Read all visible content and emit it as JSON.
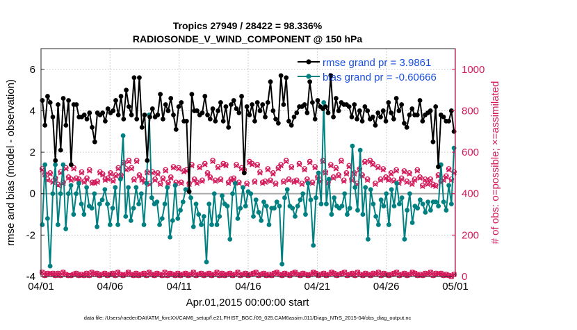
{
  "chart_data": {
    "type": "line",
    "title": "Tropics 27949 / 28422 = 98.336%",
    "subtitle": "RADIOSONDE_V_WIND_COMPONENT @ 150 hPa",
    "xlabel": "Apr.01,2015 00:00:00 start",
    "ylabel_left": "rmse and bias (model - observation)",
    "ylabel_right": "# of obs: o=possible; ×=assimilated",
    "footer": "data file: /Users/raeder/DAI/ATM_forcXX/CAM6_setup/f.e21.FHIST_BGC.f09_025.CAM6assim.011/Diags_NTrS_2015-04/obs_diag_output.nc",
    "xlim": [
      0,
      30
    ],
    "ylim_left": [
      -4,
      7
    ],
    "ylim_right": [
      0,
      1100
    ],
    "x_tick_values": [
      0,
      5,
      10,
      15,
      20,
      25,
      30
    ],
    "x_tick_labels": [
      "04/01",
      "04/06",
      "04/11",
      "04/16",
      "04/21",
      "04/26",
      "05/01"
    ],
    "y_left_ticks": [
      "-4",
      "-2",
      "0",
      "2",
      "4",
      "6"
    ],
    "y_right_ticks": [
      "0",
      "200",
      "400",
      "600",
      "800",
      "1000"
    ],
    "legend": {
      "position": "top-right",
      "entries": [
        "rmse grand pr = 3.9861",
        "bias grand pr = -0.60666"
      ]
    },
    "colors": {
      "rmse": "#000000",
      "bias": "#008080",
      "obs": "#d3195a",
      "legend_text": "#1a4fe0",
      "zero_line": "#aaaaaa",
      "grid": "#bfbfbf"
    },
    "series": [
      {
        "name": "rmse",
        "axis": "left",
        "values": [
          4.5,
          3.3,
          4.7,
          4.4,
          3.7,
          1.6,
          4.3,
          2.1,
          4.6,
          3.3,
          4.5,
          1.4,
          4.3,
          4.3,
          3.7,
          3.7,
          3.8,
          3.6,
          3.9,
          3.2,
          2.5,
          3.9,
          3.8,
          3.9,
          3.5,
          4.1,
          3.9,
          4.0,
          4.5,
          3.8,
          4.7,
          3.6,
          5.0,
          4.2,
          3.8,
          5.6,
          3.6,
          5.6,
          3.2,
          3.8,
          1.6,
          3.7,
          4.1,
          3.7,
          3.8,
          4.8,
          3.6,
          4.3,
          4.0,
          4.6,
          3.8,
          3.1,
          4.2,
          4.4,
          3.5,
          3.5,
          0.1,
          4.8,
          4.0,
          4.0,
          3.8,
          3.9,
          4.7,
          3.8,
          3.6,
          4.1,
          3.5,
          4.0,
          4.4,
          3.5,
          4.2,
          3.2,
          4.3,
          4.5,
          4.1,
          3.9,
          4.7,
          1.0,
          4.2,
          3.8,
          4.3,
          3.5,
          4.4,
          4.0,
          4.3,
          3.7,
          4.4,
          5.4,
          4.0,
          3.6,
          3.4,
          5.7,
          4.3,
          5.6,
          3.5,
          3.3,
          3.7,
          3.9,
          4.2,
          4.2,
          4.3,
          3.9,
          5.4,
          4.4,
          3.6,
          4.5,
          4.2,
          4.1,
          4.2,
          3.9,
          5.7,
          3.7,
          4.6,
          4.0,
          4.4,
          4.3,
          4.3,
          4.2,
          3.7,
          4.3,
          3.6,
          4.0,
          3.5,
          4.2,
          4.0,
          3.6,
          3.7,
          3.3,
          3.9,
          3.7,
          4.0,
          3.5,
          4.4,
          3.9,
          3.6,
          4.6,
          4.0,
          4.3,
          3.4,
          3.2,
          3.8,
          4.1,
          3.8,
          3.8,
          4.5,
          3.5,
          3.8,
          3.9,
          4.0,
          2.5,
          4.2,
          1.3,
          3.8,
          3.7,
          3.5,
          3.5,
          4.0,
          3.0
        ]
      },
      {
        "name": "bias",
        "axis": "left",
        "values": [
          -1.5,
          1.4,
          -1.2,
          -3.5,
          0.0,
          1.4,
          -1.5,
          0.0,
          1.4,
          -1.7,
          0.0,
          0.4,
          -1.0,
          0.0,
          0.5,
          -0.5,
          -1.0,
          0.3,
          -0.6,
          -0.7,
          0.0,
          -1.6,
          -0.5,
          -0.3,
          0.2,
          -0.5,
          -1.5,
          -0.7,
          0.3,
          -1.5,
          0.7,
          2.8,
          -1.1,
          0.3,
          -1.3,
          -0.7,
          0.3,
          -0.5,
          0.0,
          -1.5,
          0.5,
          3.8,
          -0.2,
          -0.5,
          -0.4,
          -1.5,
          -1.2,
          -0.5,
          0.3,
          -2.1,
          -1.3,
          0.4,
          -1.2,
          -0.8,
          -0.4,
          0.2,
          0.2,
          -0.2,
          -1.6,
          -0.5,
          -1.0,
          -1.5,
          -1.1,
          -3.3,
          -0.5,
          -1.5,
          0.0,
          -1.5,
          -1.1,
          -0.1,
          -0.5,
          -0.6,
          -2.2,
          0.0,
          0.5,
          -1.2,
          -0.7,
          0.3,
          -0.6,
          0.1,
          0.0,
          -1.1,
          -0.3,
          -0.9,
          -1.3,
          -0.4,
          -0.6,
          -1.5,
          -0.7,
          -0.7,
          -0.4,
          -0.6,
          -3.4,
          -0.2,
          0.2,
          -0.6,
          -0.7,
          -1.1,
          -0.6,
          -0.3,
          0.0,
          -1.0,
          0.5,
          -0.3,
          -2.5,
          -0.2,
          1.0,
          -0.5,
          4.4,
          -0.5,
          0.7,
          -1.0,
          -0.2,
          -0.6,
          -0.7,
          -0.6,
          0.0,
          -1.0,
          -0.7,
          2.3,
          0.3,
          -0.8,
          2.1,
          -1.0,
          0.3,
          -2.2,
          0.2,
          -0.5,
          -1.1,
          -1.5,
          -0.3,
          -0.6,
          0.0,
          -1.5,
          0.2,
          -0.6,
          0.5,
          -0.5,
          -0.2,
          -2.2,
          -0.8,
          0.0,
          -1.4,
          -0.6,
          -0.7,
          -0.3,
          -0.5,
          -0.9,
          -0.4,
          -0.8,
          -0.4,
          -0.4,
          -0.6,
          1.4,
          -0.4,
          -0.8,
          0.4,
          -0.5,
          2.2
        ]
      },
      {
        "name": "possible obs",
        "axis": "right",
        "marker": "o",
        "values": [
          520,
          495,
          470,
          500,
          460,
          475,
          445,
          505,
          455,
          525,
          480,
          470,
          525,
          475,
          470,
          505,
          460,
          475,
          515,
          455,
          455,
          460,
          505,
          495,
          470,
          475,
          500,
          465,
          490,
          525,
          490,
          550,
          520,
          560,
          525,
          470,
          560,
          490,
          470,
          460,
          505,
          450,
          505,
          470,
          500,
          450,
          475,
          515,
          455,
          480,
          530,
          455,
          525,
          455,
          510,
          515,
          450,
          540,
          470,
          455,
          530,
          465,
          545,
          500,
          480,
          560,
          465,
          530,
          470,
          545,
          540,
          455,
          470,
          475,
          540,
          455,
          525,
          515,
          450,
          555,
          545,
          460,
          540,
          505,
          455,
          460,
          520,
          465,
          500,
          450,
          525,
          540,
          460,
          560,
          470,
          530,
          460,
          465,
          545,
          450,
          520,
          470,
          555,
          455,
          530,
          480,
          465,
          560,
          505,
          455,
          540,
          480,
          525,
          490,
          560,
          465,
          500,
          535,
          470,
          500,
          450,
          520,
          490,
          555,
          470,
          560,
          545,
          450,
          530,
          470,
          520,
          480,
          470,
          500,
          465,
          515,
          455,
          475,
          510,
          460,
          500,
          450,
          470,
          515,
          480,
          440,
          470,
          450,
          470,
          445,
          440,
          490,
          460,
          470,
          485,
          520,
          470,
          505
        ]
      },
      {
        "name": "assimilated obs",
        "axis": "right",
        "marker": "x",
        "values": [
          515,
          490,
          465,
          495,
          455,
          470,
          440,
          500,
          450,
          520,
          475,
          465,
          520,
          470,
          465,
          500,
          455,
          470,
          510,
          450,
          450,
          455,
          500,
          490,
          465,
          470,
          495,
          460,
          485,
          520,
          485,
          545,
          515,
          555,
          520,
          465,
          555,
          485,
          465,
          455,
          500,
          445,
          500,
          465,
          495,
          445,
          470,
          510,
          450,
          475,
          525,
          450,
          520,
          450,
          505,
          510,
          445,
          535,
          465,
          450,
          525,
          460,
          540,
          495,
          475,
          555,
          460,
          525,
          465,
          540,
          535,
          450,
          465,
          470,
          535,
          450,
          520,
          510,
          445,
          550,
          540,
          455,
          535,
          500,
          450,
          455,
          515,
          460,
          495,
          445,
          520,
          535,
          455,
          555,
          465,
          525,
          455,
          460,
          540,
          445,
          515,
          465,
          550,
          450,
          525,
          475,
          460,
          555,
          500,
          450,
          535,
          475,
          520,
          485,
          555,
          460,
          495,
          530,
          465,
          495,
          445,
          515,
          485,
          550,
          465,
          555,
          540,
          445,
          525,
          465,
          515,
          475,
          465,
          495,
          460,
          510,
          450,
          470,
          505,
          455,
          495,
          445,
          465,
          510,
          475,
          435,
          465,
          445,
          465,
          440,
          435,
          485,
          455,
          465,
          480,
          515,
          465,
          500
        ]
      },
      {
        "name": "possible obs (low)",
        "axis": "right",
        "marker": "o",
        "values": [
          20,
          5,
          15,
          10,
          15,
          5,
          15,
          5,
          20,
          10,
          5,
          5,
          10,
          15,
          5,
          10,
          5,
          15,
          5,
          20,
          10,
          15,
          5,
          10,
          15,
          5,
          10,
          15,
          5,
          20,
          10,
          5,
          10,
          20,
          10,
          5,
          15,
          5,
          10,
          15,
          5,
          20,
          10,
          5,
          15,
          10,
          5,
          20,
          5,
          15,
          10,
          5,
          15,
          5,
          10,
          15,
          5,
          10,
          20,
          5,
          10,
          15,
          5,
          10,
          15,
          5,
          10,
          20,
          5,
          15,
          5,
          10,
          15,
          5,
          10,
          20,
          5,
          10,
          15,
          5,
          10,
          15,
          20,
          5,
          10,
          15,
          5,
          10,
          5,
          15,
          20,
          10,
          5,
          15,
          10,
          5,
          15,
          20,
          10,
          5,
          15,
          10,
          5,
          10,
          20,
          15,
          5,
          10,
          15,
          5,
          10,
          20,
          15,
          5,
          10,
          15,
          20,
          5,
          10,
          15,
          5,
          20,
          10,
          5,
          15,
          10,
          5,
          15,
          10,
          20,
          5,
          15,
          10,
          5,
          10,
          15,
          20,
          5,
          10,
          15,
          5,
          10,
          20,
          15,
          5,
          10,
          5,
          15,
          10,
          20,
          5,
          15,
          10,
          15,
          5,
          10,
          5,
          0,
          10
        ]
      },
      {
        "name": "assimilated obs (low)",
        "axis": "right",
        "marker": "x",
        "values": [
          20,
          5,
          15,
          10,
          15,
          5,
          15,
          5,
          20,
          10,
          5,
          5,
          10,
          15,
          5,
          10,
          5,
          15,
          5,
          20,
          10,
          15,
          5,
          10,
          15,
          5,
          10,
          15,
          5,
          20,
          10,
          5,
          10,
          20,
          10,
          5,
          15,
          5,
          10,
          15,
          5,
          20,
          10,
          5,
          15,
          10,
          5,
          20,
          5,
          15,
          10,
          5,
          15,
          5,
          10,
          15,
          5,
          10,
          20,
          5,
          10,
          15,
          5,
          10,
          15,
          5,
          10,
          20,
          5,
          15,
          5,
          10,
          15,
          5,
          10,
          20,
          5,
          10,
          15,
          5,
          10,
          15,
          20,
          5,
          10,
          15,
          5,
          10,
          5,
          15,
          20,
          10,
          5,
          15,
          10,
          5,
          15,
          20,
          10,
          5,
          15,
          10,
          5,
          10,
          20,
          15,
          5,
          10,
          15,
          5,
          10,
          20,
          15,
          5,
          10,
          15,
          20,
          5,
          10,
          15,
          5,
          20,
          10,
          5,
          15,
          10,
          5,
          15,
          10,
          20,
          5,
          15,
          10,
          5,
          10,
          15,
          20,
          5,
          10,
          15,
          5,
          10,
          20,
          15,
          5,
          10,
          5,
          15,
          10,
          20,
          5,
          15,
          10,
          15,
          5,
          10,
          5,
          0,
          10
        ]
      }
    ]
  }
}
